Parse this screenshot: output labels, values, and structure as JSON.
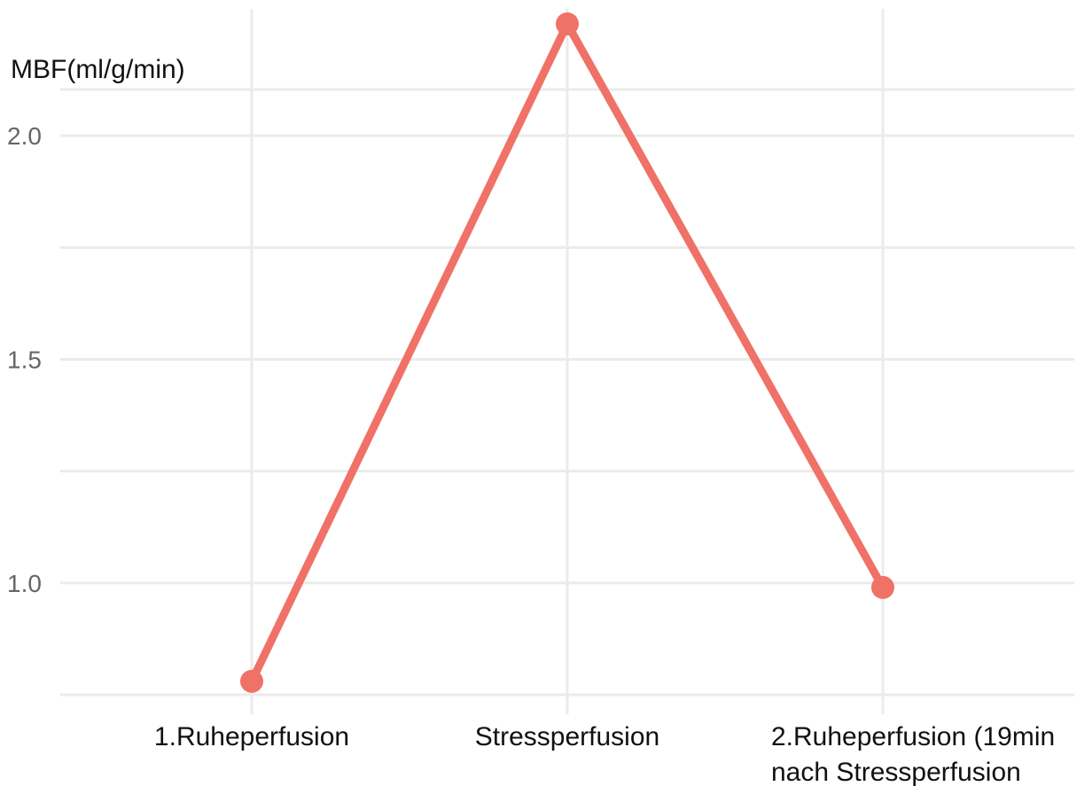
{
  "chart_data": {
    "type": "line",
    "ylabel": "MBF(ml/g/min)",
    "categories": [
      "1.Ruheperfusion",
      "Stressperfusion",
      [
        "2.Ruheperfusion (19min",
        "nach Stressperfusion"
      ]
    ],
    "series": [
      {
        "values": [
          0.78,
          2.25,
          0.99
        ],
        "color": "#f07167"
      }
    ],
    "ylim": [
      0.75,
      2.25
    ],
    "yticks": [
      1.0,
      1.5,
      2.0
    ],
    "yticks_labels": [
      "1.0",
      "1.5",
      "2.0"
    ],
    "minor_gridlines": [
      0.75,
      1.25,
      1.75,
      2.25
    ],
    "grid": true,
    "legend": "none"
  }
}
